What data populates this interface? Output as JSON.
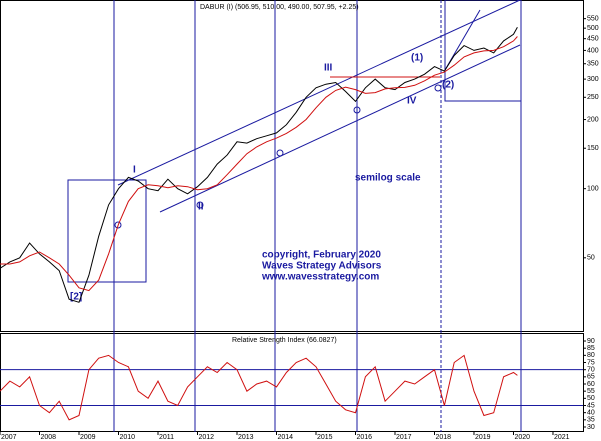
{
  "chart_data": [
    {
      "type": "line",
      "title": "DABUR (I) (506.95, 510.00, 490.00, 507.95, +2.25)",
      "log_scale": true,
      "x": [
        2007,
        2007.25,
        2007.5,
        2007.75,
        2008,
        2008.25,
        2008.5,
        2008.75,
        2009,
        2009.25,
        2009.5,
        2009.75,
        2010,
        2010.25,
        2010.5,
        2010.75,
        2011,
        2011.25,
        2011.5,
        2011.75,
        2012,
        2012.25,
        2012.5,
        2012.75,
        2013,
        2013.25,
        2013.5,
        2013.75,
        2014,
        2014.25,
        2014.5,
        2014.75,
        2015,
        2015.25,
        2015.5,
        2015.75,
        2016,
        2016.25,
        2016.5,
        2016.75,
        2017,
        2017.25,
        2017.5,
        2017.75,
        2018,
        2018.25,
        2018.5,
        2018.75,
        2019,
        2019.25,
        2019.5,
        2019.75,
        2020,
        2020.1
      ],
      "series": [
        {
          "color": "#000000",
          "values": [
            45,
            48,
            50,
            58,
            52,
            48,
            44,
            33,
            32,
            42,
            62,
            85,
            100,
            112,
            108,
            100,
            98,
            110,
            100,
            95,
            102,
            112,
            128,
            140,
            160,
            158,
            165,
            170,
            175,
            190,
            215,
            250,
            275,
            285,
            290,
            265,
            240,
            275,
            300,
            275,
            270,
            290,
            300,
            315,
            340,
            325,
            380,
            420,
            400,
            410,
            390,
            440,
            470,
            505
          ]
        },
        {
          "color": "#d01010",
          "values": [
            47,
            47,
            48,
            51,
            53,
            50,
            47,
            42,
            37,
            36,
            40,
            52,
            70,
            88,
            100,
            104,
            103,
            101,
            103,
            102,
            99,
            100,
            104,
            115,
            128,
            142,
            152,
            160,
            166,
            174,
            185,
            200,
            225,
            250,
            268,
            277,
            270,
            260,
            262,
            272,
            275,
            276,
            282,
            295,
            312,
            322,
            345,
            375,
            390,
            398,
            400,
            415,
            440,
            460
          ]
        }
      ],
      "xlim": [
        2007,
        2021.76
      ],
      "xticks": [
        2007,
        2008,
        2009,
        2010,
        2011,
        2012,
        2013,
        2014,
        2015,
        2016,
        2017,
        2018,
        2019,
        2020,
        2021
      ],
      "ylim": [
        24,
        650
      ],
      "yticks": [
        50,
        100,
        150,
        200,
        250,
        300,
        350,
        400,
        450,
        500,
        550
      ],
      "annotations": {
        "scale": "semilog scale",
        "copyright": "copyright, February 2020",
        "company": "Waves Strategy Advisors",
        "website": "www.wavesstrategy.com",
        "wave_i": "I",
        "wave_ii": "II",
        "wave_iii": "III",
        "wave_iv": "IV",
        "wave_1": "(1)",
        "wave_2": "(2)",
        "wave_big_2": "[2]"
      }
    },
    {
      "type": "line",
      "title": "Relative Strength Index (66.0827)",
      "x": [
        2007,
        2007.25,
        2007.5,
        2007.75,
        2008,
        2008.25,
        2008.5,
        2008.75,
        2009,
        2009.25,
        2009.5,
        2009.75,
        2010,
        2010.25,
        2010.5,
        2010.75,
        2011,
        2011.25,
        2011.5,
        2011.75,
        2012,
        2012.25,
        2012.5,
        2012.75,
        2013,
        2013.25,
        2013.5,
        2013.75,
        2014,
        2014.25,
        2014.5,
        2014.75,
        2015,
        2015.25,
        2015.5,
        2015.75,
        2016,
        2016.25,
        2016.5,
        2016.75,
        2017,
        2017.25,
        2017.5,
        2017.75,
        2018,
        2018.25,
        2018.5,
        2018.75,
        2019,
        2019.25,
        2019.5,
        2019.75,
        2020,
        2020.1
      ],
      "series": [
        {
          "color": "#d01010",
          "values": [
            55,
            62,
            58,
            65,
            45,
            40,
            48,
            35,
            38,
            70,
            78,
            80,
            75,
            72,
            55,
            50,
            62,
            48,
            45,
            58,
            65,
            72,
            68,
            75,
            70,
            55,
            60,
            62,
            58,
            68,
            75,
            78,
            72,
            60,
            48,
            42,
            40,
            65,
            72,
            48,
            55,
            62,
            60,
            65,
            70,
            45,
            75,
            80,
            55,
            38,
            40,
            65,
            68,
            66
          ]
        }
      ],
      "ylim": [
        26.5,
        95.6
      ],
      "yticks": [
        30,
        35,
        40,
        45,
        50,
        55,
        60,
        65,
        70,
        75,
        80,
        85,
        90
      ],
      "ref_lines": [
        70,
        45
      ]
    }
  ]
}
